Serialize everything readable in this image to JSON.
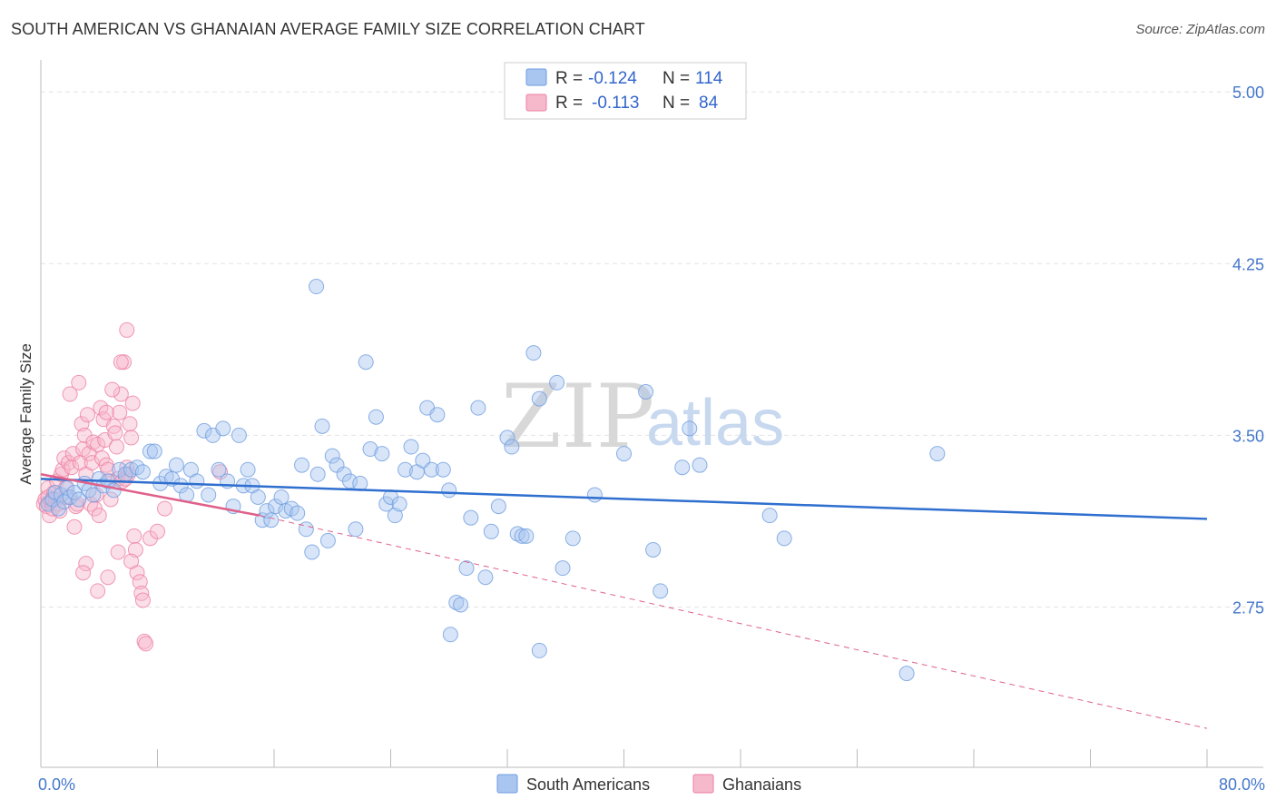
{
  "title": "SOUTH AMERICAN VS GHANAIAN AVERAGE FAMILY SIZE CORRELATION CHART",
  "source": "Source: ZipAtlas.com",
  "watermark": {
    "zip": "ZIP",
    "atlas": "atlas"
  },
  "colors": {
    "blue_fill": "#a9c6f0",
    "blue_stroke": "#6f9ee0",
    "blue_line": "#2f6fcf",
    "pink_fill": "#f6b9cc",
    "pink_stroke": "#ee7fa2",
    "pink_line": "#e0608a",
    "grid": "#e3e3e3",
    "tick_text": "#4477cc"
  },
  "legend": {
    "rows": [
      {
        "r_label": "R =",
        "r_value": "-0.124",
        "n_label": "N =",
        "n_value": "114"
      },
      {
        "r_label": "R =",
        "r_value": "-0.113",
        "n_label": "N =",
        "n_value": "84"
      }
    ]
  },
  "chart_data": {
    "type": "scatter",
    "title": "SOUTH AMERICAN VS GHANAIAN AVERAGE FAMILY SIZE CORRELATION CHART",
    "xlabel": "",
    "ylabel": "Average Family Size",
    "xlim": [
      0,
      80
    ],
    "ylim": [
      2.05,
      5.1
    ],
    "x_tick_labels": [
      "0.0%",
      "80.0%"
    ],
    "y_ticks": [
      2.75,
      3.5,
      4.25,
      5.0
    ],
    "y_tick_labels": [
      "2.75",
      "3.50",
      "4.25",
      "5.00"
    ],
    "grid": true,
    "legend_position": "top-center",
    "series": [
      {
        "name": "South Americans",
        "R": -0.124,
        "N": 114,
        "trend": {
          "x0": 0.0,
          "y0": 3.31,
          "x1": 80.0,
          "y1": 3.135
        },
        "points": [
          [
            0.5,
            3.2
          ],
          [
            0.8,
            3.22
          ],
          [
            1.0,
            3.25
          ],
          [
            1.2,
            3.18
          ],
          [
            1.4,
            3.24
          ],
          [
            1.6,
            3.21
          ],
          [
            1.8,
            3.27
          ],
          [
            2.0,
            3.23
          ],
          [
            2.3,
            3.25
          ],
          [
            2.6,
            3.22
          ],
          [
            3.0,
            3.29
          ],
          [
            3.3,
            3.26
          ],
          [
            3.6,
            3.24
          ],
          [
            4.0,
            3.31
          ],
          [
            4.3,
            3.28
          ],
          [
            4.6,
            3.3
          ],
          [
            5.0,
            3.26
          ],
          [
            5.4,
            3.35
          ],
          [
            5.8,
            3.33
          ],
          [
            6.2,
            3.35
          ],
          [
            6.6,
            3.36
          ],
          [
            7.0,
            3.34
          ],
          [
            7.5,
            3.43
          ],
          [
            7.8,
            3.43
          ],
          [
            8.2,
            3.29
          ],
          [
            8.6,
            3.32
          ],
          [
            9.0,
            3.31
          ],
          [
            9.3,
            3.37
          ],
          [
            9.6,
            3.28
          ],
          [
            10.0,
            3.24
          ],
          [
            10.3,
            3.35
          ],
          [
            10.7,
            3.3
          ],
          [
            11.2,
            3.52
          ],
          [
            11.5,
            3.24
          ],
          [
            11.8,
            3.5
          ],
          [
            12.2,
            3.35
          ],
          [
            12.5,
            3.53
          ],
          [
            12.8,
            3.3
          ],
          [
            13.2,
            3.19
          ],
          [
            13.6,
            3.5
          ],
          [
            13.9,
            3.28
          ],
          [
            14.2,
            3.35
          ],
          [
            14.5,
            3.28
          ],
          [
            14.9,
            3.23
          ],
          [
            15.2,
            3.13
          ],
          [
            15.5,
            3.17
          ],
          [
            15.8,
            3.13
          ],
          [
            16.1,
            3.19
          ],
          [
            16.5,
            3.23
          ],
          [
            16.8,
            3.17
          ],
          [
            17.2,
            3.18
          ],
          [
            17.6,
            3.16
          ],
          [
            17.9,
            3.37
          ],
          [
            18.2,
            3.09
          ],
          [
            18.6,
            2.99
          ],
          [
            19.0,
            3.33
          ],
          [
            19.3,
            3.54
          ],
          [
            19.7,
            3.04
          ],
          [
            20.0,
            3.41
          ],
          [
            20.3,
            3.37
          ],
          [
            18.9,
            4.15
          ],
          [
            20.8,
            3.33
          ],
          [
            21.2,
            3.3
          ],
          [
            21.6,
            3.09
          ],
          [
            21.9,
            3.29
          ],
          [
            22.3,
            3.82
          ],
          [
            22.6,
            3.44
          ],
          [
            23.0,
            3.58
          ],
          [
            23.4,
            3.42
          ],
          [
            23.7,
            3.2
          ],
          [
            24.0,
            3.23
          ],
          [
            24.3,
            3.15
          ],
          [
            24.6,
            3.2
          ],
          [
            25.0,
            3.35
          ],
          [
            25.4,
            3.45
          ],
          [
            25.8,
            3.34
          ],
          [
            26.2,
            3.39
          ],
          [
            26.5,
            3.62
          ],
          [
            26.8,
            3.35
          ],
          [
            27.2,
            3.59
          ],
          [
            27.6,
            3.35
          ],
          [
            28.0,
            3.26
          ],
          [
            28.5,
            2.77
          ],
          [
            28.8,
            2.76
          ],
          [
            29.2,
            2.92
          ],
          [
            29.5,
            3.14
          ],
          [
            30.0,
            3.62
          ],
          [
            30.5,
            2.88
          ],
          [
            30.9,
            3.08
          ],
          [
            31.4,
            3.19
          ],
          [
            32.0,
            3.49
          ],
          [
            32.3,
            3.45
          ],
          [
            32.7,
            3.07
          ],
          [
            33.0,
            3.06
          ],
          [
            33.3,
            3.06
          ],
          [
            33.8,
            3.86
          ],
          [
            34.2,
            3.66
          ],
          [
            35.4,
            3.73
          ],
          [
            35.8,
            2.92
          ],
          [
            36.5,
            3.05
          ],
          [
            28.1,
            2.63
          ],
          [
            34.2,
            2.56
          ],
          [
            38.0,
            3.24
          ],
          [
            40.0,
            3.42
          ],
          [
            41.5,
            3.69
          ],
          [
            42.0,
            3.0
          ],
          [
            42.5,
            2.82
          ],
          [
            44.0,
            3.36
          ],
          [
            44.5,
            3.53
          ],
          [
            45.2,
            3.37
          ],
          [
            50.0,
            3.15
          ],
          [
            51.0,
            3.05
          ],
          [
            61.5,
            3.42
          ],
          [
            59.4,
            2.46
          ]
        ]
      },
      {
        "name": "Ghanaians",
        "R": -0.113,
        "N": 84,
        "trend_solid": {
          "x0": 0.0,
          "y0": 3.33,
          "x1": 15.0,
          "y1": 3.15
        },
        "trend_dashed": {
          "x0": 15.0,
          "y0": 3.15,
          "x1": 80.0,
          "y1": 2.22
        },
        "points": [
          [
            0.2,
            3.2
          ],
          [
            0.3,
            3.22
          ],
          [
            0.4,
            3.19
          ],
          [
            0.5,
            3.27
          ],
          [
            0.5,
            3.23
          ],
          [
            0.6,
            3.15
          ],
          [
            0.7,
            3.21
          ],
          [
            0.8,
            3.18
          ],
          [
            0.9,
            3.25
          ],
          [
            1.0,
            3.22
          ],
          [
            1.1,
            3.3
          ],
          [
            1.2,
            3.2
          ],
          [
            1.3,
            3.17
          ],
          [
            1.4,
            3.33
          ],
          [
            1.5,
            3.35
          ],
          [
            1.6,
            3.4
          ],
          [
            1.7,
            3.27
          ],
          [
            1.8,
            3.23
          ],
          [
            1.9,
            3.38
          ],
          [
            2.0,
            3.68
          ],
          [
            2.1,
            3.36
          ],
          [
            2.2,
            3.42
          ],
          [
            2.3,
            3.1
          ],
          [
            2.4,
            3.19
          ],
          [
            2.5,
            3.2
          ],
          [
            2.6,
            3.73
          ],
          [
            2.7,
            3.38
          ],
          [
            2.8,
            3.55
          ],
          [
            2.9,
            3.44
          ],
          [
            3.0,
            3.5
          ],
          [
            3.1,
            3.33
          ],
          [
            3.2,
            3.59
          ],
          [
            3.3,
            3.42
          ],
          [
            3.4,
            3.2
          ],
          [
            3.5,
            3.38
          ],
          [
            3.6,
            3.47
          ],
          [
            3.7,
            3.18
          ],
          [
            3.8,
            3.24
          ],
          [
            3.9,
            3.46
          ],
          [
            4.0,
            3.15
          ],
          [
            4.1,
            3.62
          ],
          [
            4.2,
            3.4
          ],
          [
            4.3,
            3.57
          ],
          [
            4.4,
            3.48
          ],
          [
            4.5,
            3.37
          ],
          [
            4.6,
            3.35
          ],
          [
            4.7,
            3.3
          ],
          [
            4.8,
            3.22
          ],
          [
            5.0,
            3.54
          ],
          [
            5.1,
            3.51
          ],
          [
            5.2,
            3.45
          ],
          [
            5.3,
            3.31
          ],
          [
            5.4,
            3.6
          ],
          [
            5.5,
            3.68
          ],
          [
            5.6,
            3.3
          ],
          [
            5.7,
            3.82
          ],
          [
            5.8,
            3.31
          ],
          [
            5.9,
            3.36
          ],
          [
            6.0,
            3.33
          ],
          [
            6.1,
            3.55
          ],
          [
            6.2,
            3.49
          ],
          [
            6.3,
            3.64
          ],
          [
            6.4,
            3.06
          ],
          [
            6.5,
            3.0
          ],
          [
            6.6,
            2.9
          ],
          [
            6.8,
            2.86
          ],
          [
            6.9,
            2.81
          ],
          [
            7.0,
            2.78
          ],
          [
            7.1,
            2.6
          ],
          [
            7.2,
            2.59
          ],
          [
            5.9,
            3.96
          ],
          [
            5.5,
            3.82
          ],
          [
            4.9,
            3.7
          ],
          [
            4.5,
            3.6
          ],
          [
            3.9,
            2.82
          ],
          [
            3.1,
            2.94
          ],
          [
            2.9,
            2.9
          ],
          [
            4.6,
            2.88
          ],
          [
            5.3,
            2.99
          ],
          [
            6.2,
            2.95
          ],
          [
            7.5,
            3.05
          ],
          [
            8.0,
            3.08
          ],
          [
            12.3,
            3.34
          ],
          [
            8.5,
            3.18
          ]
        ]
      }
    ]
  },
  "bottom_legend": [
    {
      "label": "South Americans"
    },
    {
      "label": "Ghanaians"
    }
  ]
}
